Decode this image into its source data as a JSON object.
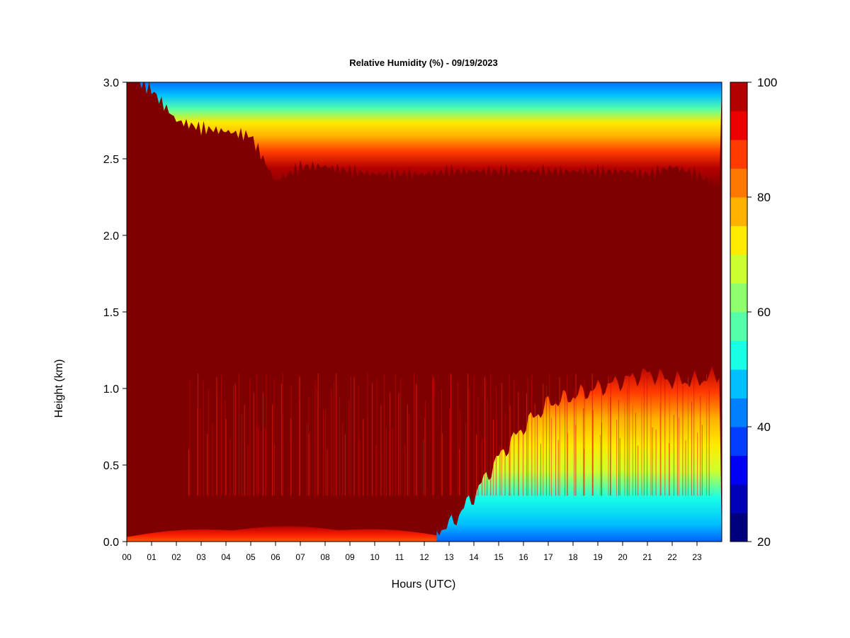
{
  "chart_data": {
    "type": "heatmap",
    "title": "Relative Humidity (%) - 09/19/2023",
    "xlabel": "Hours (UTC)",
    "ylabel": "Height (km)",
    "xlim": [
      0,
      24
    ],
    "ylim": [
      0,
      3.0
    ],
    "x_ticks": [
      "00",
      "01",
      "02",
      "03",
      "04",
      "05",
      "06",
      "07",
      "08",
      "09",
      "10",
      "11",
      "12",
      "13",
      "14",
      "15",
      "16",
      "17",
      "18",
      "19",
      "20",
      "21",
      "22",
      "23"
    ],
    "y_ticks": [
      "0.0",
      "0.5",
      "1.0",
      "1.5",
      "2.0",
      "2.5",
      "3.0"
    ],
    "colorbar": {
      "min": 20,
      "max": 100,
      "step": 5,
      "tick_labels": [
        "20",
        "40",
        "60",
        "80",
        "100"
      ],
      "colors": [
        "#00007f",
        "#0000b8",
        "#0000f5",
        "#003dff",
        "#0080ff",
        "#00c0ff",
        "#19ffe6",
        "#55ffaa",
        "#90ff6d",
        "#cdff30",
        "#ffeb00",
        "#ffb200",
        "#ff7800",
        "#ff3b00",
        "#ec0000",
        "#b50000"
      ]
    },
    "bands": [
      {
        "name": "upper_dry_top",
        "hours": [
          0,
          1,
          2,
          3,
          4,
          5,
          6,
          7,
          8,
          9,
          10,
          11,
          12,
          13,
          14,
          15,
          16,
          17,
          18,
          19,
          20,
          21,
          22,
          23,
          24
        ],
        "base_km": [
          3.05,
          2.95,
          2.75,
          2.7,
          2.68,
          2.65,
          2.35,
          2.45,
          2.45,
          2.42,
          2.4,
          2.4,
          2.4,
          2.42,
          2.42,
          2.42,
          2.42,
          2.42,
          2.42,
          2.42,
          2.42,
          2.4,
          2.45,
          2.4,
          2.3
        ]
      },
      {
        "name": "saturated_layer_base_km",
        "hours": [
          0,
          2,
          4,
          6,
          8,
          10,
          12,
          13,
          14,
          15,
          16,
          17,
          18,
          19,
          20,
          21,
          22,
          23,
          24
        ],
        "value_km": [
          0.02,
          0.05,
          0.1,
          0.12,
          0.1,
          0.08,
          0.06,
          0.1,
          0.3,
          0.55,
          0.75,
          0.9,
          0.95,
          1.0,
          1.05,
          1.1,
          1.05,
          1.05,
          1.1
        ]
      }
    ]
  }
}
